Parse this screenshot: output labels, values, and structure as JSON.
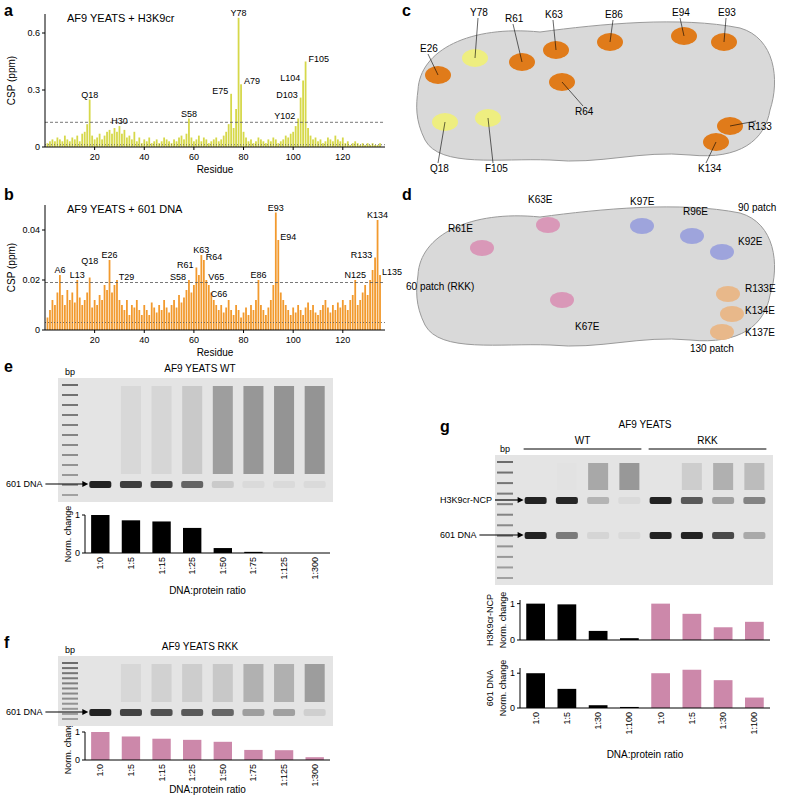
{
  "panels": [
    "a",
    "b",
    "c",
    "d",
    "e",
    "f",
    "g"
  ],
  "chart_data": [
    {
      "type": "bar",
      "title": "AF9 YEATS + H3K9cr",
      "x_label": "Residue",
      "y_label": "CSP (ppm)",
      "color": "#d6d84a",
      "x": [
        1,
        2,
        3,
        4,
        5,
        6,
        7,
        8,
        9,
        10,
        11,
        12,
        13,
        14,
        15,
        16,
        17,
        18,
        19,
        20,
        21,
        22,
        23,
        24,
        25,
        26,
        27,
        28,
        29,
        30,
        31,
        32,
        33,
        34,
        35,
        36,
        37,
        38,
        39,
        40,
        41,
        42,
        43,
        44,
        45,
        46,
        47,
        48,
        49,
        50,
        51,
        52,
        53,
        54,
        55,
        56,
        57,
        58,
        59,
        60,
        61,
        62,
        63,
        64,
        65,
        66,
        67,
        68,
        69,
        70,
        71,
        72,
        73,
        74,
        75,
        76,
        77,
        78,
        79,
        80,
        81,
        82,
        83,
        84,
        85,
        86,
        87,
        88,
        89,
        90,
        91,
        92,
        93,
        94,
        95,
        96,
        97,
        98,
        99,
        100,
        101,
        102,
        103,
        104,
        105,
        106,
        107,
        108,
        109,
        110,
        111,
        112,
        113,
        114,
        115,
        116,
        117,
        118,
        119,
        120,
        121,
        122,
        123,
        124,
        125,
        126,
        127,
        128,
        129,
        130,
        131,
        132,
        133,
        134,
        135
      ],
      "values": [
        0.02,
        0.03,
        0.04,
        0.03,
        0.05,
        0.04,
        0.03,
        0.06,
        0.04,
        0.03,
        0.05,
        0.04,
        0.06,
        0.03,
        0.07,
        0.08,
        0.12,
        0.25,
        0.06,
        0.04,
        0.05,
        0.07,
        0.04,
        0.06,
        0.08,
        0.09,
        0.07,
        0.1,
        0.08,
        0.11,
        0.07,
        0.09,
        0.05,
        0.06,
        0.04,
        0.08,
        0.03,
        0.05,
        0.02,
        0.04,
        0.03,
        0.05,
        0.02,
        0.03,
        0.04,
        0.02,
        0.03,
        0.05,
        0.04,
        0.03,
        0.02,
        0.04,
        0.03,
        0.05,
        0.06,
        0.04,
        0.07,
        0.15,
        0.05,
        0.03,
        0.04,
        0.06,
        0.03,
        0.05,
        0.04,
        0.02,
        0.03,
        0.04,
        0.05,
        0.03,
        0.04,
        0.06,
        0.08,
        0.12,
        0.28,
        0.1,
        0.2,
        0.68,
        0.33,
        0.08,
        0.05,
        0.03,
        0.04,
        0.02,
        0.03,
        0.05,
        0.04,
        0.03,
        0.02,
        0.04,
        0.03,
        0.05,
        0.04,
        0.02,
        0.03,
        0.04,
        0.06,
        0.05,
        0.07,
        0.08,
        0.11,
        0.15,
        0.26,
        0.35,
        0.45,
        0.1,
        0.06,
        0.04,
        0.05,
        0.03,
        0.04,
        0.02,
        0.03,
        0.05,
        0.04,
        0.03,
        0.06,
        0.04,
        0.03,
        0.05,
        0.02,
        0.03,
        0.01,
        0.02,
        0.03,
        0.02,
        0.01,
        0.02,
        0.01,
        0.02,
        0.01,
        0.02,
        0.01,
        0.01,
        0.02
      ],
      "xlim": [
        0,
        137
      ],
      "ylim": [
        0,
        0.7
      ],
      "xticks": [
        20,
        40,
        60,
        80,
        100,
        120
      ],
      "yticks": [
        0,
        0.3,
        0.6
      ],
      "hlines": [
        0.13,
        0.012
      ],
      "annotations": [
        {
          "x": 18,
          "text": "Q18"
        },
        {
          "x": 30,
          "text": "H30"
        },
        {
          "x": 58,
          "text": "S58"
        },
        {
          "x": 75,
          "text": "E75"
        },
        {
          "x": 78,
          "text": "Y78"
        },
        {
          "x": 79,
          "text": "A79"
        },
        {
          "x": 102,
          "text": "Y102"
        },
        {
          "x": 103,
          "text": "D103"
        },
        {
          "x": 104,
          "text": "L104"
        },
        {
          "x": 105,
          "text": "F105"
        }
      ]
    },
    {
      "type": "bar",
      "title": "AF9 YEATS + 601 DNA",
      "x_label": "Residue",
      "y_label": "CSP (ppm)",
      "color": "#f29a2e",
      "x": [
        1,
        2,
        3,
        4,
        5,
        6,
        7,
        8,
        9,
        10,
        11,
        12,
        13,
        14,
        15,
        16,
        17,
        18,
        19,
        20,
        21,
        22,
        23,
        24,
        25,
        26,
        27,
        28,
        29,
        30,
        31,
        32,
        33,
        34,
        35,
        36,
        37,
        38,
        39,
        40,
        41,
        42,
        43,
        44,
        45,
        46,
        47,
        48,
        49,
        50,
        51,
        52,
        53,
        54,
        55,
        56,
        57,
        58,
        59,
        60,
        61,
        62,
        63,
        64,
        65,
        66,
        67,
        68,
        69,
        70,
        71,
        72,
        73,
        74,
        75,
        76,
        77,
        78,
        79,
        80,
        81,
        82,
        83,
        84,
        85,
        86,
        87,
        88,
        89,
        90,
        91,
        92,
        93,
        94,
        95,
        96,
        97,
        98,
        99,
        100,
        101,
        102,
        103,
        104,
        105,
        106,
        107,
        108,
        109,
        110,
        111,
        112,
        113,
        114,
        115,
        116,
        117,
        118,
        119,
        120,
        121,
        122,
        123,
        124,
        125,
        126,
        127,
        128,
        129,
        130,
        131,
        132,
        133,
        134,
        135
      ],
      "values": [
        0.005,
        0.008,
        0.012,
        0.01,
        0.015,
        0.022,
        0.014,
        0.01,
        0.016,
        0.012,
        0.015,
        0.011,
        0.02,
        0.013,
        0.01,
        0.012,
        0.015,
        0.021,
        0.009,
        0.012,
        0.01,
        0.014,
        0.012,
        0.018,
        0.016,
        0.028,
        0.015,
        0.018,
        0.02,
        0.012,
        0.01,
        0.008,
        0.012,
        0.006,
        0.01,
        0.009,
        0.012,
        0.008,
        0.006,
        0.01,
        0.008,
        0.006,
        0.011,
        0.009,
        0.007,
        0.01,
        0.008,
        0.012,
        0.009,
        0.007,
        0.01,
        0.012,
        0.009,
        0.014,
        0.011,
        0.013,
        0.016,
        0.02,
        0.015,
        0.018,
        0.025,
        0.022,
        0.03,
        0.028,
        0.02,
        0.018,
        0.015,
        0.012,
        0.01,
        0.008,
        0.01,
        0.007,
        0.009,
        0.012,
        0.008,
        0.006,
        0.01,
        0.008,
        0.005,
        0.007,
        0.009,
        0.006,
        0.01,
        0.008,
        0.012,
        0.02,
        0.01,
        0.008,
        0.006,
        0.009,
        0.012,
        0.018,
        0.047,
        0.036,
        0.015,
        0.012,
        0.01,
        0.008,
        0.006,
        0.009,
        0.007,
        0.01,
        0.008,
        0.006,
        0.009,
        0.011,
        0.008,
        0.01,
        0.007,
        0.006,
        0.008,
        0.01,
        0.012,
        0.009,
        0.007,
        0.01,
        0.008,
        0.011,
        0.009,
        0.012,
        0.01,
        0.008,
        0.012,
        0.014,
        0.02,
        0.01,
        0.012,
        0.015,
        0.018,
        0.014,
        0.02,
        0.024,
        0.029,
        0.044,
        0.022
      ],
      "xlim": [
        0,
        137
      ],
      "ylim": [
        0,
        0.05
      ],
      "xticks": [
        20,
        40,
        60,
        80,
        100,
        120
      ],
      "yticks": [
        0,
        0.02,
        0.04
      ],
      "hlines": [
        0.019,
        0.003
      ],
      "annotations": [
        {
          "x": 6,
          "text": "A6"
        },
        {
          "x": 13,
          "text": "L13"
        },
        {
          "x": 18,
          "text": "Q18"
        },
        {
          "x": 26,
          "text": "E26"
        },
        {
          "x": 29,
          "text": "T29"
        },
        {
          "x": 58,
          "text": "S58"
        },
        {
          "x": 61,
          "text": "R61"
        },
        {
          "x": 63,
          "text": "K63"
        },
        {
          "x": 64,
          "text": "R64"
        },
        {
          "x": 65,
          "text": "V65"
        },
        {
          "x": 66,
          "text": "C66"
        },
        {
          "x": 86,
          "text": "E86"
        },
        {
          "x": 93,
          "text": "E93"
        },
        {
          "x": 94,
          "text": "E94"
        },
        {
          "x": 125,
          "text": "N125"
        },
        {
          "x": 133,
          "text": "R133"
        },
        {
          "x": 134,
          "text": "K134"
        },
        {
          "x": 135,
          "text": "L135"
        }
      ]
    },
    {
      "type": "bar",
      "y_label": "Norm. change",
      "x_label": "DNA:protein ratio",
      "color": "#000000",
      "categories": [
        "1:0",
        "1:5",
        "1:15",
        "1:25",
        "1:50",
        "1:75",
        "1:125",
        "1:300"
      ],
      "values": [
        1,
        0.86,
        0.83,
        0.66,
        0.13,
        0.03,
        0,
        0
      ],
      "ylim": [
        0,
        1
      ],
      "yticks": [
        0,
        1
      ]
    },
    {
      "type": "bar",
      "y_label": "Norm. change",
      "x_label": "DNA:protein ratio",
      "color": "#cc88aa",
      "categories": [
        "1:0",
        "1:5",
        "1:15",
        "1:25",
        "1:50",
        "1:75",
        "1:125",
        "1:300"
      ],
      "values": [
        1,
        0.84,
        0.76,
        0.72,
        0.65,
        0.36,
        0.35,
        0.1
      ],
      "ylim": [
        0,
        1
      ],
      "yticks": [
        0,
        1
      ]
    },
    {
      "type": "bar",
      "subtitle": "H3K9cr-NCP",
      "y_label": "Norm. change",
      "tick_labels": "y",
      "categories": [
        "1:0",
        "1:5",
        "1:30",
        "1:100",
        "1:0",
        "1:5",
        "1:30",
        "1:100"
      ],
      "values": [
        1,
        0.98,
        0.25,
        0.05,
        1,
        0.72,
        0.35,
        0.5
      ],
      "colors": [
        "#000000",
        "#000000",
        "#000000",
        "#000000",
        "#cc88aa",
        "#cc88aa",
        "#cc88aa",
        "#cc88aa"
      ],
      "ylim": [
        0,
        1.1
      ],
      "yticks": [
        0,
        1
      ]
    },
    {
      "type": "bar",
      "subtitle": "601 DNA",
      "y_label": "Norm. change",
      "x_label": "DNA:protein ratio",
      "categories": [
        "1:0",
        "1:5",
        "1:30",
        "1:100",
        "1:0",
        "1:5",
        "1:30",
        "1:100"
      ],
      "values": [
        1,
        0.55,
        0.08,
        0.03,
        1,
        1.1,
        0.8,
        0.3
      ],
      "colors": [
        "#000000",
        "#000000",
        "#000000",
        "#000000",
        "#cc88aa",
        "#cc88aa",
        "#cc88aa",
        "#cc88aa"
      ],
      "ylim": [
        0,
        1.15
      ],
      "yticks": [
        0,
        1
      ]
    }
  ],
  "structures": [
    {
      "labels": [
        {
          "text": "E26",
          "color": "#e07b1a"
        },
        {
          "text": "Y78",
          "color": "#eeee80"
        },
        {
          "text": "R61",
          "color": "#e07b1a"
        },
        {
          "text": "K63",
          "color": "#e07b1a"
        },
        {
          "text": "E86",
          "color": "#e07b1a"
        },
        {
          "text": "E94",
          "color": "#e07b1a"
        },
        {
          "text": "E93",
          "color": "#e07b1a"
        },
        {
          "text": "R133",
          "color": "#e07b1a"
        },
        {
          "text": "K134",
          "color": "#e07b1a"
        },
        {
          "text": "R64",
          "color": "#e07b1a"
        },
        {
          "text": "F105",
          "color": "#eeee80"
        },
        {
          "text": "Q18",
          "color": "#eeee80"
        }
      ]
    },
    {
      "labels": [
        "R61E",
        "K63E",
        "K97E",
        "R96E",
        "K92E",
        "K67E",
        "R133E",
        "K134E",
        "K137E"
      ],
      "patches": [
        {
          "name": "60 patch (RKK)",
          "residues": [
            "R61E",
            "K63E",
            "K67E"
          ],
          "color": "#d998b8"
        },
        {
          "name": "90 patch",
          "residues": [
            "K92E",
            "R96E",
            "K97E"
          ],
          "color": "#9ea4dc"
        },
        {
          "name": "130 patch",
          "residues": [
            "R133E",
            "K134E",
            "K137E"
          ],
          "color": "#e8b88a"
        }
      ]
    }
  ],
  "gels": [
    {
      "title": "AF9 YEATS WT",
      "ladder": "bp",
      "bands": [
        "601 DNA"
      ]
    },
    {
      "title": "AF9 YEATS RKK",
      "ladder": "bp",
      "bands": [
        "601 DNA"
      ]
    },
    {
      "title": "AF9 YEATS",
      "groups": [
        "WT",
        "RKK"
      ],
      "ladder": "bp",
      "bands": [
        "H3K9cr-NCP",
        "601 DNA"
      ]
    }
  ]
}
